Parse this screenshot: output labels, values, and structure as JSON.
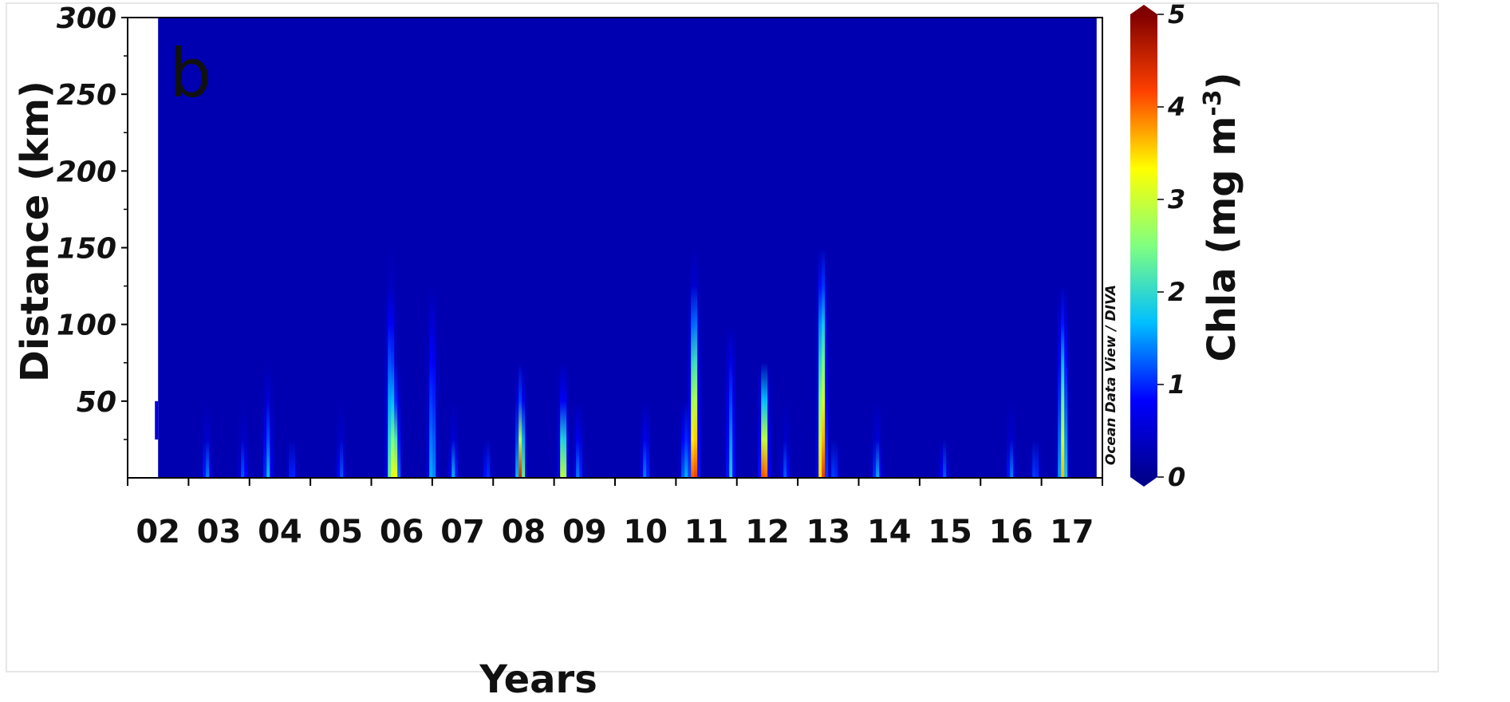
{
  "chart_data": {
    "type": "heatmap",
    "panel_label": "b",
    "xlabel": "Years",
    "ylabel": "Distance (km)",
    "colorbar_label": "Chla (mg m",
    "colorbar_label_sup": "-3",
    "colorbar_label_end": ")",
    "colorbar_range": [
      0,
      5
    ],
    "colorbar_ticks": [
      "0",
      "1",
      "2",
      "3",
      "4",
      "5"
    ],
    "watermark": "Ocean Data View / DIVA",
    "x_ticks": [
      "02",
      "03",
      "04",
      "05",
      "06",
      "07",
      "08",
      "09",
      "10",
      "11",
      "12",
      "13",
      "14",
      "15",
      "16",
      "17"
    ],
    "y_ticks": [
      "50",
      "100",
      "150",
      "200",
      "250",
      "300"
    ],
    "xlim": [
      2001.6,
      2017.6
    ],
    "ylim": [
      0,
      300
    ],
    "data_start_year": 2002.1,
    "data_end_year": 2017.45,
    "background_value": 0.25,
    "colormap": [
      "#00008f",
      "#0000ff",
      "#00bfff",
      "#80ff80",
      "#ffff00",
      "#ff4000",
      "#800000"
    ],
    "blooms": [
      {
        "year": 2002.9,
        "peak": 1.2,
        "height_km": 30
      },
      {
        "year": 2003.5,
        "peak": 1.0,
        "height_km": 30
      },
      {
        "year": 2003.9,
        "peak": 1.5,
        "height_km": 60
      },
      {
        "year": 2004.3,
        "peak": 0.9,
        "height_km": 25
      },
      {
        "year": 2005.1,
        "peak": 1.0,
        "height_km": 30
      },
      {
        "year": 2005.92,
        "peak": 2.4,
        "height_km": 130
      },
      {
        "year": 2006.0,
        "peak": 2.8,
        "height_km": 60
      },
      {
        "year": 2006.6,
        "peak": 1.6,
        "height_km": 120
      },
      {
        "year": 2006.95,
        "peak": 1.4,
        "height_km": 30
      },
      {
        "year": 2007.5,
        "peak": 0.9,
        "height_km": 25
      },
      {
        "year": 2008.05,
        "peak": 4.3,
        "height_km": 60
      },
      {
        "year": 2008.75,
        "peak": 3.3,
        "height_km": 60
      },
      {
        "year": 2009.0,
        "peak": 1.2,
        "height_km": 40
      },
      {
        "year": 2010.1,
        "peak": 1.2,
        "height_km": 40
      },
      {
        "year": 2010.75,
        "peak": 1.5,
        "height_km": 50
      },
      {
        "year": 2010.9,
        "peak": 4.9,
        "height_km": 130
      },
      {
        "year": 2011.5,
        "peak": 1.6,
        "height_km": 100
      },
      {
        "year": 2012.05,
        "peak": 4.8,
        "height_km": 75
      },
      {
        "year": 2012.4,
        "peak": 1.0,
        "height_km": 30
      },
      {
        "year": 2013.0,
        "peak": 4.6,
        "height_km": 150
      },
      {
        "year": 2013.2,
        "peak": 1.0,
        "height_km": 25
      },
      {
        "year": 2013.9,
        "peak": 1.4,
        "height_km": 30
      },
      {
        "year": 2015.0,
        "peak": 1.0,
        "height_km": 25
      },
      {
        "year": 2016.1,
        "peak": 1.2,
        "height_km": 30
      },
      {
        "year": 2016.5,
        "peak": 1.0,
        "height_km": 25
      },
      {
        "year": 2016.95,
        "peak": 3.4,
        "height_km": 120
      }
    ]
  }
}
